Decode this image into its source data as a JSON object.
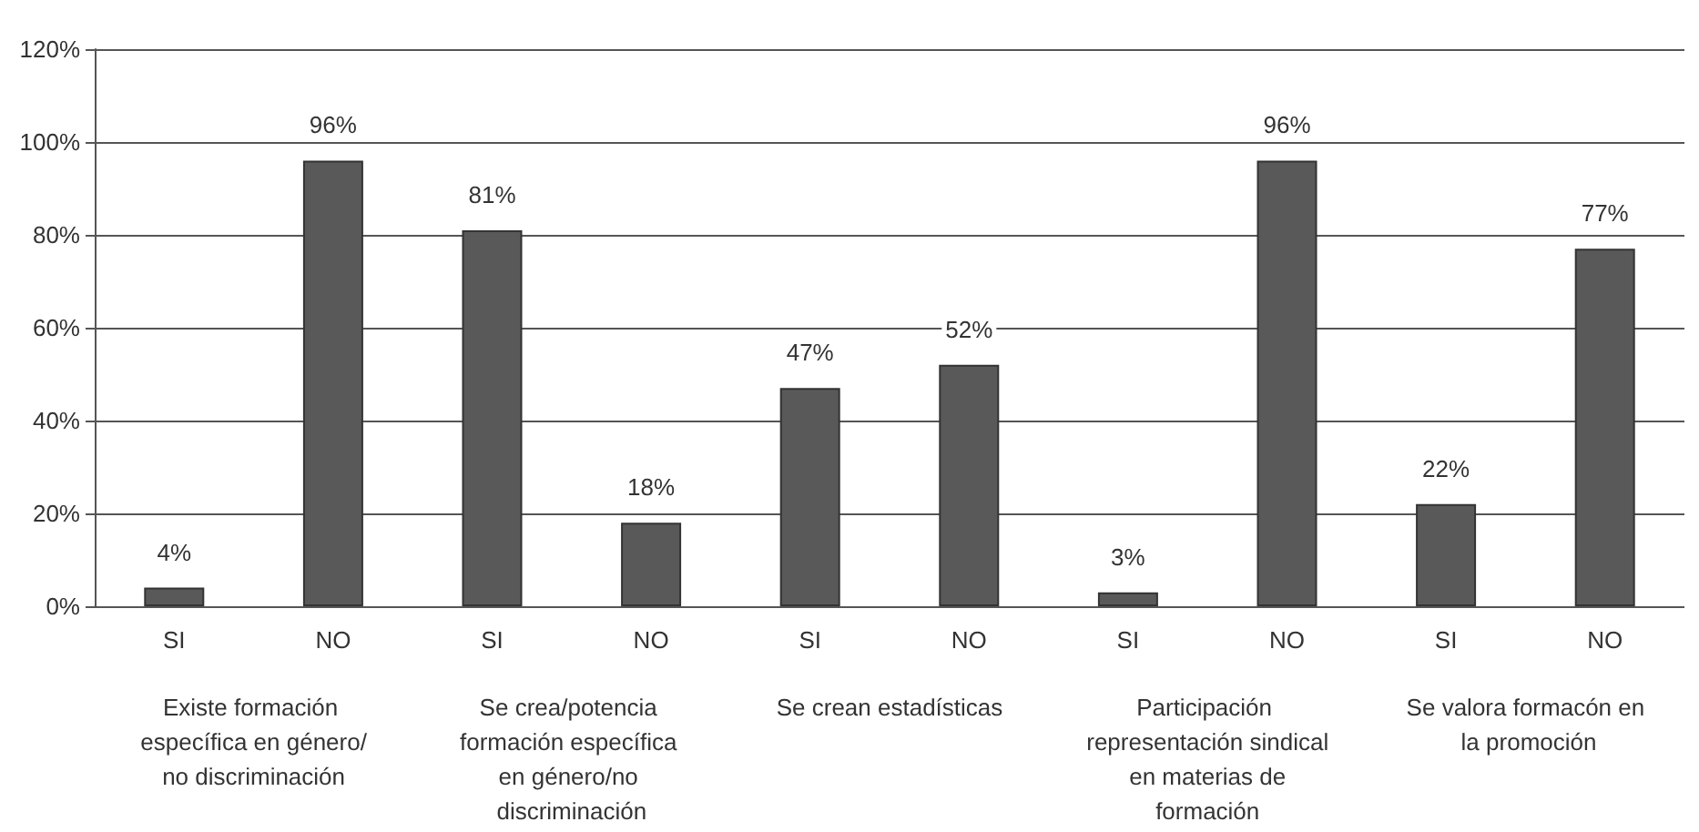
{
  "chart_data": {
    "type": "bar",
    "categories": [
      "SI",
      "NO",
      "SI",
      "NO",
      "SI",
      "NO",
      "SI",
      "NO",
      "SI",
      "NO"
    ],
    "values": [
      4,
      96,
      81,
      18,
      47,
      52,
      3,
      96,
      22,
      77
    ],
    "color": "#595959",
    "value_labels": [
      "4%",
      "96%",
      "81%",
      "18%",
      "47%",
      "52%",
      "3%",
      "96%",
      "22%",
      "77%"
    ],
    "ylim": [
      0,
      120
    ],
    "yticks": [
      {
        "value": 0,
        "label": "0%"
      },
      {
        "value": 20,
        "label": "20%"
      },
      {
        "value": 40,
        "label": "40%"
      },
      {
        "value": 60,
        "label": "60%"
      },
      {
        "value": 80,
        "label": "80%"
      },
      {
        "value": 100,
        "label": "100%"
      },
      {
        "value": 120,
        "label": "120%"
      }
    ],
    "grid": "y",
    "annotations": [
      "Existe formación específica en género/no discriminación",
      "Se crea/potencia formación específica en género/no discriminación",
      "Se crean estadísticas",
      "Participación representación sindical en materias de formación",
      "Se valora formacón en la promoción"
    ]
  }
}
